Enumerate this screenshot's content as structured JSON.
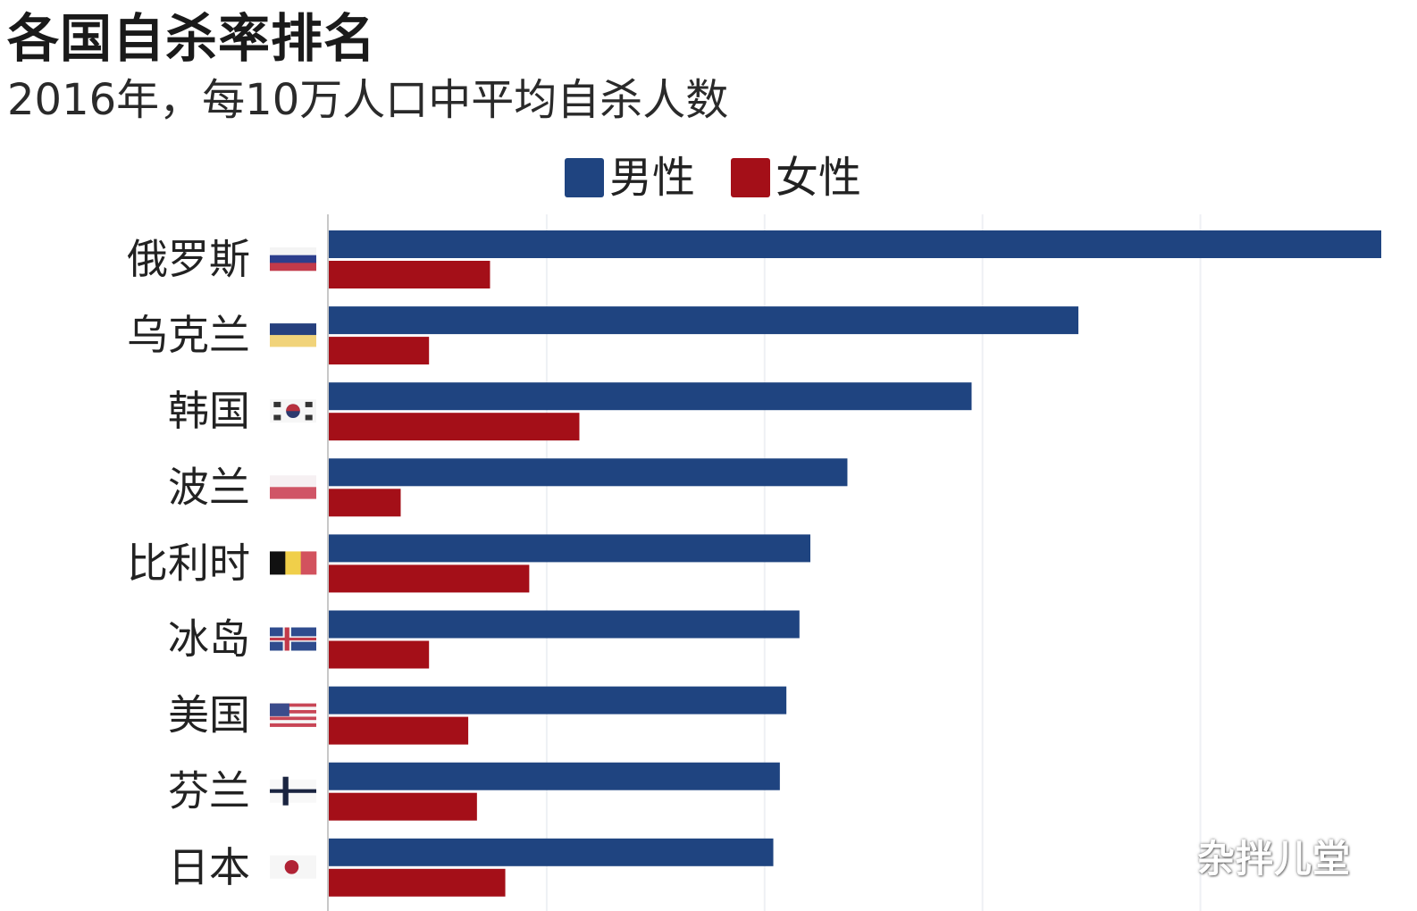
{
  "chart_data": {
    "type": "bar",
    "orientation": "horizontal",
    "title": "各国自杀率排名",
    "subtitle": "2016年，每10万人口中平均自杀人数",
    "categories": [
      "俄罗斯",
      "乌克兰",
      "韩国",
      "波兰",
      "比利时",
      "冰岛",
      "美国",
      "芬兰",
      "日本"
    ],
    "series": [
      {
        "name": "男性",
        "color": "#1f4480",
        "values": [
          48.3,
          34.4,
          29.5,
          23.8,
          22.1,
          21.6,
          21.0,
          20.7,
          20.4
        ]
      },
      {
        "name": "女性",
        "color": "#a40f18",
        "values": [
          7.4,
          4.6,
          11.5,
          3.3,
          9.2,
          4.6,
          6.4,
          6.8,
          8.1
        ]
      }
    ],
    "xlim": [
      0,
      48.3
    ],
    "grid": true,
    "legend_position": "top-center"
  },
  "flags": [
    "russia-flag",
    "ukraine-flag",
    "south-korea-flag",
    "poland-flag",
    "belgium-flag",
    "iceland-flag",
    "usa-flag",
    "finland-flag",
    "japan-flag"
  ],
  "watermark": "杂拌儿堂"
}
